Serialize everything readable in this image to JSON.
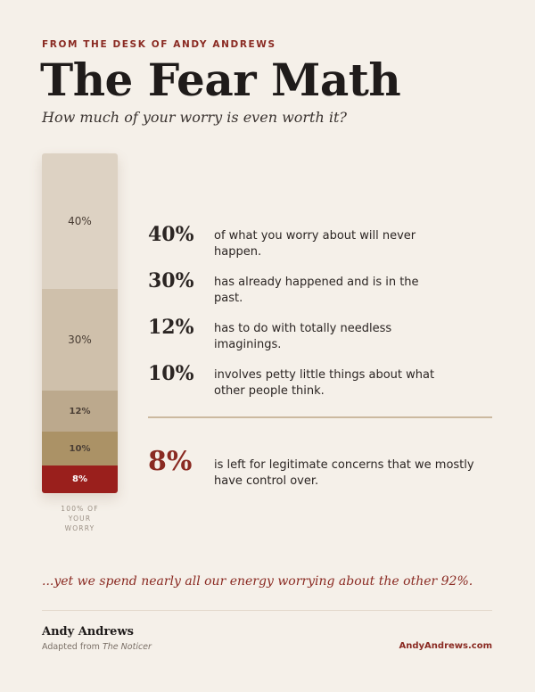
{
  "header": {
    "eyebrow": "FROM THE DESK OF ANDY ANDREWS",
    "title": "The Fear Math",
    "subtitle": "How much of your worry is even worth it?"
  },
  "chart_data": {
    "type": "bar",
    "stacked": true,
    "orientation": "vertical",
    "categories": [
      "40%",
      "30%",
      "12%",
      "10%",
      "8%"
    ],
    "values": [
      40,
      30,
      12,
      10,
      8
    ],
    "colors": [
      "#ddd2c3",
      "#cfc0ab",
      "#bca98d",
      "#ab9266",
      "#9a1f1c"
    ],
    "caption": [
      "100% OF",
      "YOUR",
      "WORRY"
    ],
    "ylim": [
      0,
      100
    ]
  },
  "stats": [
    {
      "pct": "40%",
      "desc": "of what you worry about will never happen."
    },
    {
      "pct": "30%",
      "desc": "has already happened and is in the past."
    },
    {
      "pct": "12%",
      "desc": "has to do with totally needless imaginings."
    },
    {
      "pct": "10%",
      "desc": "involves petty little things about what other people think."
    }
  ],
  "highlight": {
    "pct": "8%",
    "desc": "is left for legitimate concerns that we mostly have control over."
  },
  "closing": "...yet we spend nearly all our energy worrying about the other 92%.",
  "footer": {
    "author": "Andy Andrews",
    "adapted_prefix": "Adapted from",
    "adapted_source": "The Noticer",
    "site": "AndyAndrews.com"
  }
}
